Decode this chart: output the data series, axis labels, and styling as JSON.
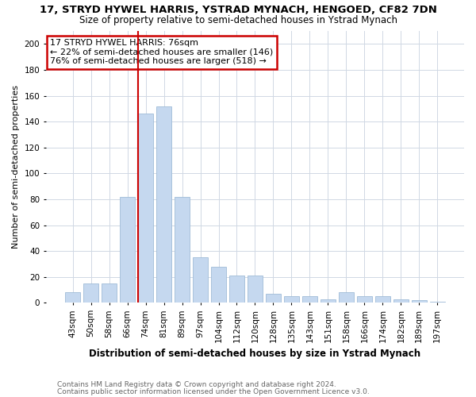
{
  "title": "17, STRYD HYWEL HARRIS, YSTRAD MYNACH, HENGOED, CF82 7DN",
  "subtitle": "Size of property relative to semi-detached houses in Ystrad Mynach",
  "xlabel": "Distribution of semi-detached houses by size in Ystrad Mynach",
  "ylabel": "Number of semi-detached properties",
  "footnote1": "Contains HM Land Registry data © Crown copyright and database right 2024.",
  "footnote2": "Contains public sector information licensed under the Open Government Licence v3.0.",
  "annotation_title": "17 STRYD HYWEL HARRIS: 76sqm",
  "annotation_line1": "← 22% of semi-detached houses are smaller (146)",
  "annotation_line2": "76% of semi-detached houses are larger (518) →",
  "categories": [
    "43sqm",
    "50sqm",
    "58sqm",
    "66sqm",
    "74sqm",
    "81sqm",
    "89sqm",
    "97sqm",
    "104sqm",
    "112sqm",
    "120sqm",
    "128sqm",
    "135sqm",
    "143sqm",
    "151sqm",
    "158sqm",
    "166sqm",
    "174sqm",
    "182sqm",
    "189sqm",
    "197sqm"
  ],
  "values": [
    8,
    15,
    15,
    82,
    146,
    152,
    82,
    35,
    28,
    21,
    21,
    7,
    5,
    5,
    3,
    8,
    5,
    5,
    3,
    2,
    1
  ],
  "bar_color": "#c5d8ef",
  "bar_edge_color": "#a0bcd8",
  "vline_color": "#cc0000",
  "annotation_box_color": "#cc0000",
  "background_color": "#ffffff",
  "grid_color": "#d0d8e4",
  "ylim": [
    0,
    210
  ],
  "yticks": [
    0,
    20,
    40,
    60,
    80,
    100,
    120,
    140,
    160,
    180,
    200
  ],
  "vline_bar_index": 4
}
